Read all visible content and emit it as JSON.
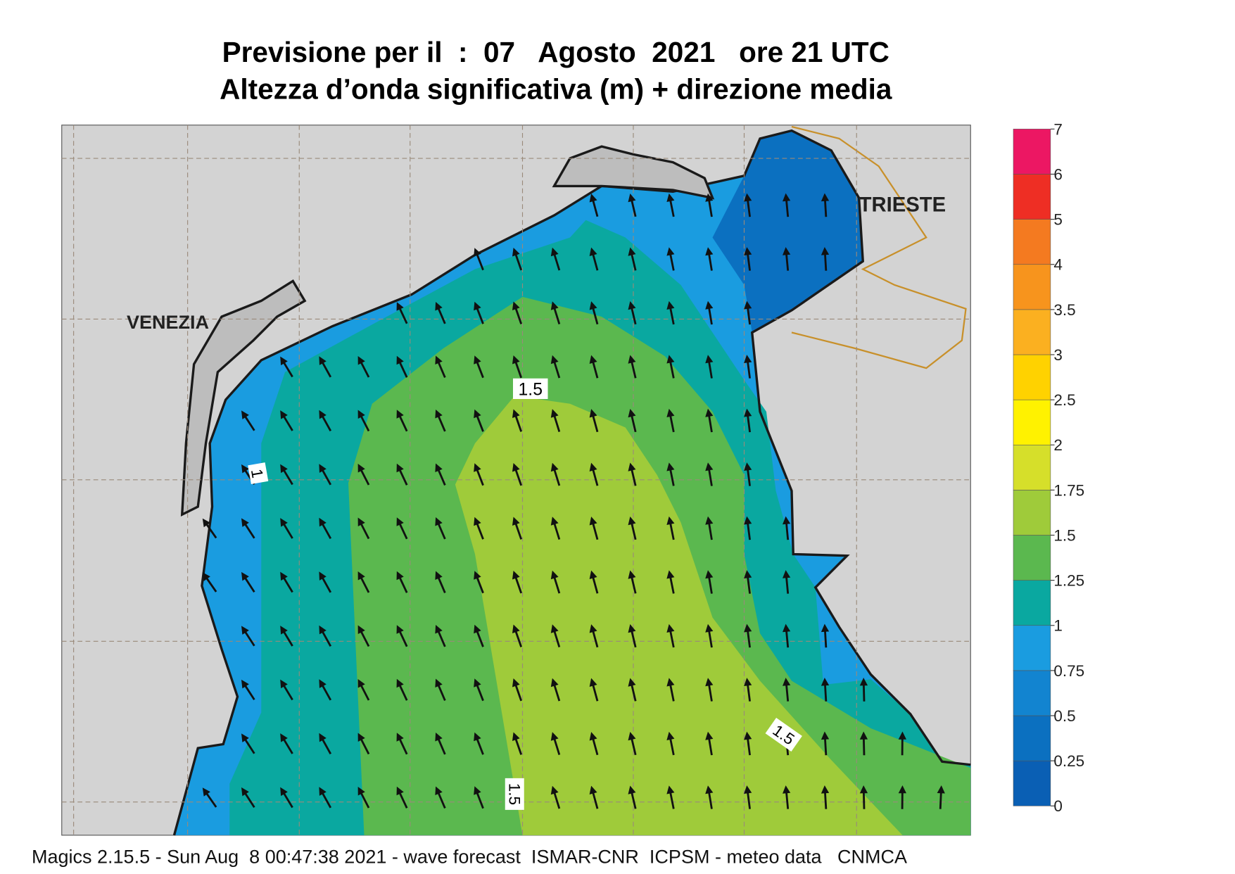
{
  "title": "Previsione per il  :  07   Agosto  2021   ore 21 UTC",
  "subtitle": "Altezza d’onda significativa (m) + direzione media",
  "map": {
    "labels": [
      "VENEZIA",
      "TRIESTE"
    ],
    "contour_labels": [
      1.5,
      1,
      1.5,
      1.5
    ]
  },
  "colorbar": {
    "levels": [
      0,
      0.25,
      0.5,
      0.75,
      1,
      1.25,
      1.5,
      1.75,
      2,
      2.5,
      3,
      3.5,
      4,
      5,
      6,
      7
    ],
    "colors": [
      "#0a5fb4",
      "#0b70c0",
      "#1284d0",
      "#1a9ce0",
      "#0aa8a0",
      "#5bb84f",
      "#9fcb3a",
      "#d6df2a",
      "#fff200",
      "#ffd200",
      "#fbb020",
      "#f7941d",
      "#f47a20",
      "#ee2e24",
      "#ec1763"
    ]
  },
  "footer": "Magics 2.15.5 - Sun Aug  8 00:47:38 2021 - wave forecast  ISMAR-CNR  ICPSM - meteo data   CNMCA"
}
